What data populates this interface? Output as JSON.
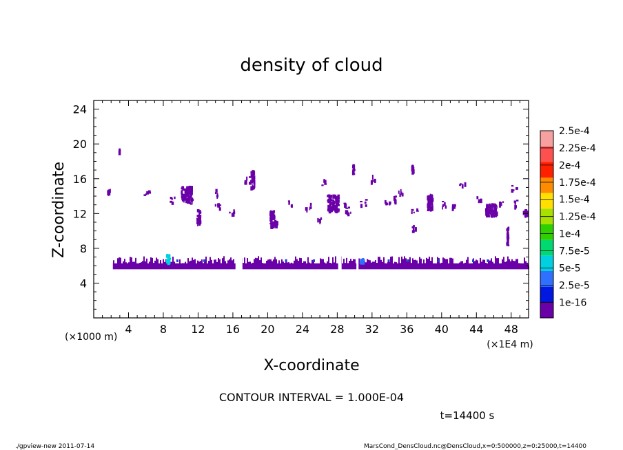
{
  "chart_data": {
    "type": "heatmap",
    "title": "density of cloud",
    "xlabel": "X-coordinate",
    "ylabel": "Z-coordinate",
    "x_unit_left": "(×1000 m)",
    "x_unit_right": "(×1E4 m)",
    "xlim": [
      0,
      50
    ],
    "ylim": [
      0,
      25
    ],
    "xticks": [
      4,
      8,
      12,
      16,
      20,
      24,
      28,
      32,
      36,
      40,
      44,
      48
    ],
    "yticks": [
      4,
      8,
      12,
      16,
      20,
      24
    ],
    "legend_placement": "right",
    "colorbar": {
      "labels": [
        "2.5e-4",
        "2.25e-4",
        "2e-4",
        "1.75e-4",
        "1.5e-4",
        "1.25e-4",
        "1e-4",
        "7.5e-5",
        "5e-5",
        "2.5e-5",
        "1e-16"
      ],
      "colors": [
        "#f6a0a0",
        "#ff5050",
        "#ff2000",
        "#ff8c00",
        "#ffe000",
        "#a8e000",
        "#30d000",
        "#00d870",
        "#00d0e0",
        "#3070ff",
        "#0018e0",
        "#6a00a8"
      ]
    },
    "cloud_regions": [
      {
        "x0": 0.0,
        "x1": 50.0,
        "z0": 5.6,
        "z1": 7.1,
        "level": "1e-16"
      },
      {
        "x0": 8.3,
        "x1": 8.9,
        "z0": 6.0,
        "z1": 7.4,
        "level": "7.5e-5"
      },
      {
        "x0": 30.5,
        "x1": 31.2,
        "z0": 6.1,
        "z1": 7.0,
        "level": "5e-5"
      },
      {
        "x0": 2.8,
        "x1": 3.1,
        "z0": 18.6,
        "z1": 19.5,
        "level": "1e-16"
      },
      {
        "x0": 1.5,
        "x1": 2.0,
        "z0": 14.0,
        "z1": 15.0,
        "level": "1e-16"
      },
      {
        "x0": 10.0,
        "x1": 11.5,
        "z0": 13.0,
        "z1": 15.2,
        "level": "1e-16"
      },
      {
        "x0": 11.8,
        "x1": 12.4,
        "z0": 10.5,
        "z1": 12.5,
        "level": "1e-16"
      },
      {
        "x0": 18.0,
        "x1": 18.6,
        "z0": 14.5,
        "z1": 17.0,
        "level": "1e-16"
      },
      {
        "x0": 20.2,
        "x1": 20.9,
        "z0": 10.2,
        "z1": 12.4,
        "level": "1e-16"
      },
      {
        "x0": 26.8,
        "x1": 28.3,
        "z0": 12.0,
        "z1": 14.2,
        "level": "1e-16"
      },
      {
        "x0": 29.7,
        "x1": 30.1,
        "z0": 16.4,
        "z1": 17.7,
        "level": "1e-16"
      },
      {
        "x0": 36.5,
        "x1": 36.9,
        "z0": 16.4,
        "z1": 17.8,
        "level": "1e-16"
      },
      {
        "x0": 38.3,
        "x1": 39.1,
        "z0": 12.0,
        "z1": 14.3,
        "level": "1e-16"
      },
      {
        "x0": 45.0,
        "x1": 46.5,
        "z0": 11.5,
        "z1": 13.2,
        "level": "1e-16"
      },
      {
        "x0": 47.4,
        "x1": 47.8,
        "z0": 8.2,
        "z1": 10.5,
        "level": "1e-16"
      },
      {
        "x0": 49.3,
        "x1": 50.0,
        "z0": 11.5,
        "z1": 12.5,
        "level": "1e-16"
      }
    ],
    "annotation_contour": "CONTOUR INTERVAL = 1.000E-04",
    "annotation_time": "t=14400 s"
  },
  "footer": {
    "left": "./gpview-new   2011-07-14",
    "right": "MarsCond_DensCloud.nc@DensCloud,x=0:500000,z=0:25000,t=14400"
  }
}
